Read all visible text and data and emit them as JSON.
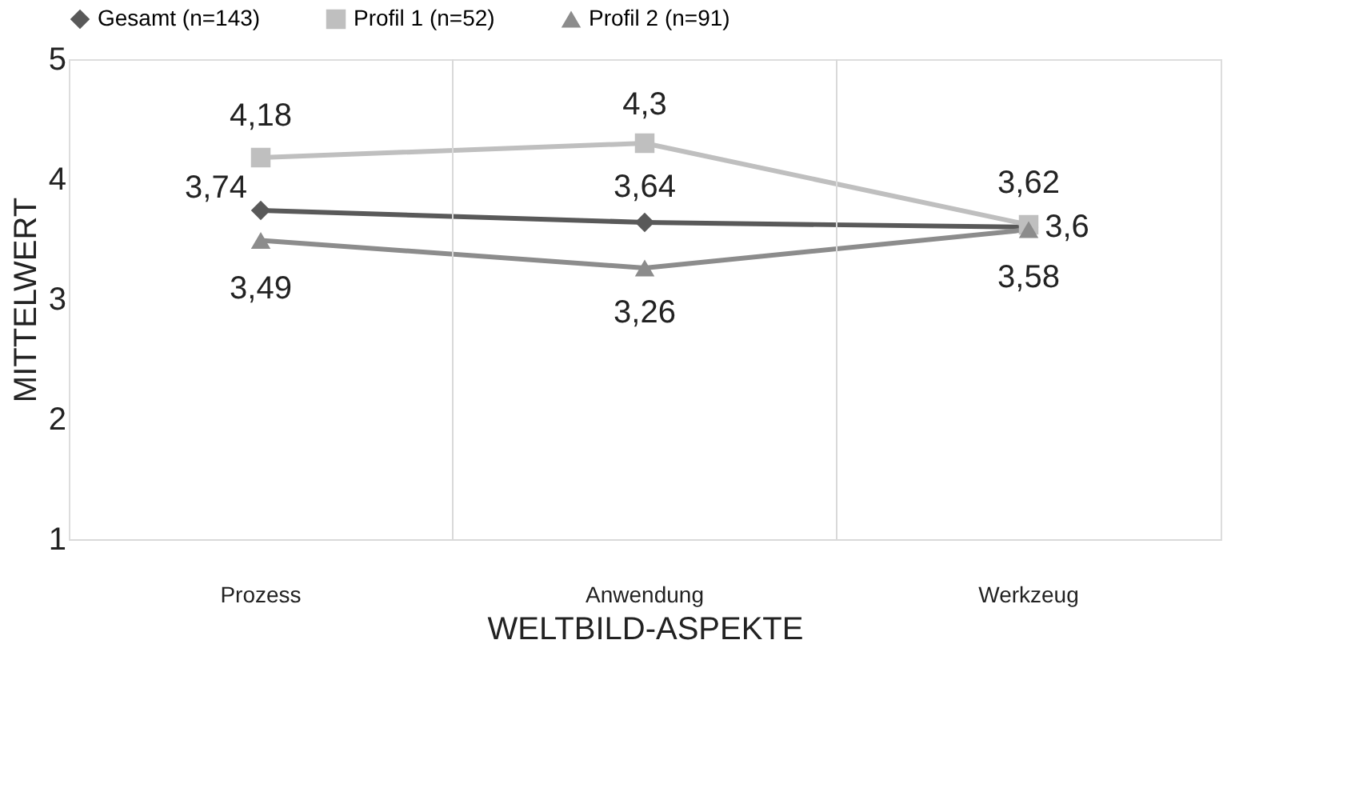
{
  "chart_data": {
    "type": "line",
    "xlabel": "WELTBILD-ASPEKTE",
    "ylabel": "MITTELWERT",
    "categories": [
      "Prozess",
      "Anwendung",
      "Werkzeug"
    ],
    "series": [
      {
        "name": "Gesamt (n=143)",
        "color": "#595959",
        "marker": "diamond",
        "values": [
          3.74,
          3.64,
          3.6
        ],
        "value_labels": [
          "3,74",
          "3,64",
          "3,6"
        ]
      },
      {
        "name": "Profil 1 (n=52)",
        "color": "#bfbfbf",
        "marker": "square",
        "values": [
          4.18,
          4.3,
          3.62
        ],
        "value_labels": [
          "4,18",
          "4,3",
          "3,62"
        ]
      },
      {
        "name": "Profil 2 (n=91)",
        "color": "#8c8c8c",
        "marker": "triangle",
        "values": [
          3.49,
          3.26,
          3.58
        ],
        "value_labels": [
          "3,49",
          "3,26",
          "3,58"
        ]
      }
    ],
    "ylim": [
      1,
      5
    ],
    "yticks": [
      1,
      2,
      3,
      4,
      5
    ],
    "grid": "x",
    "legend": "top",
    "line_style": "solid"
  }
}
